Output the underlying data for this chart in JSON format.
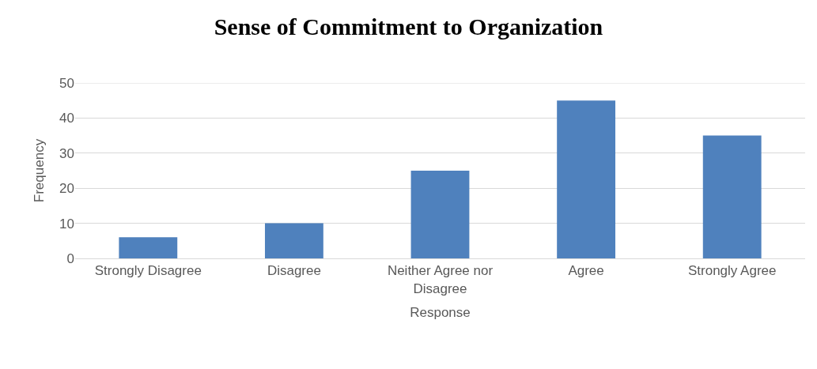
{
  "chart_data": {
    "type": "bar",
    "title": "Sense of Commitment to Organization",
    "xlabel": "Response",
    "ylabel": "Frequency",
    "categories": [
      "Strongly Disagree",
      "Disagree",
      "Neither Agree nor Disagree",
      "Agree",
      "Strongly Agree"
    ],
    "values": [
      6,
      10,
      25,
      45,
      35
    ],
    "color": "#4f81bd",
    "ylim": [
      0,
      50
    ],
    "yticks": [
      0,
      10,
      20,
      30,
      40,
      50
    ],
    "grid": "y"
  }
}
